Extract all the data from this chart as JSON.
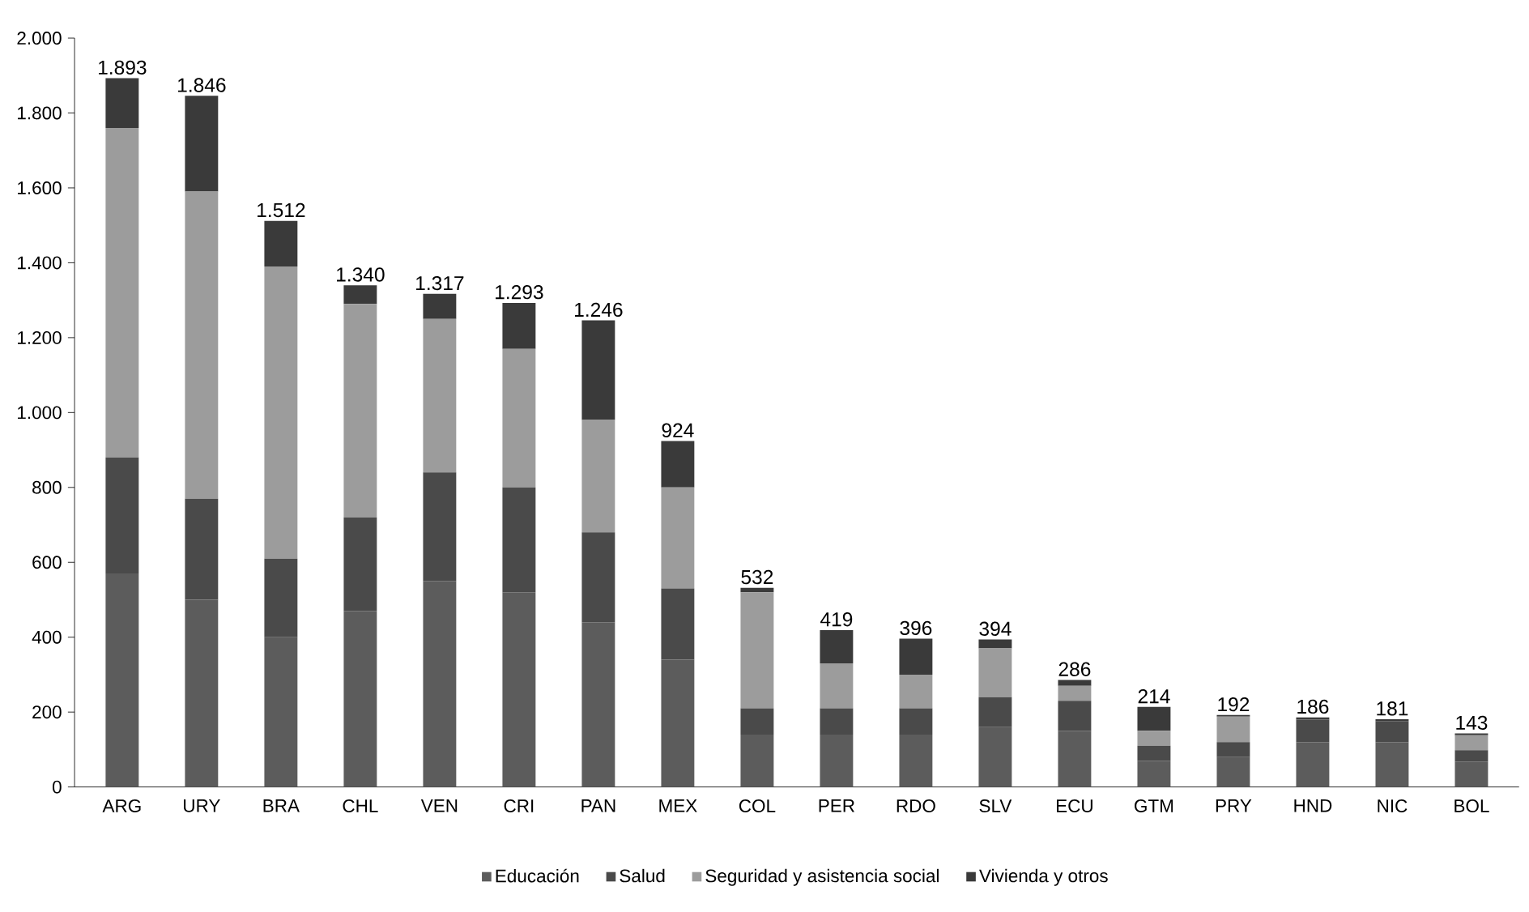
{
  "chart_data": {
    "type": "bar",
    "stacked": true,
    "categories": [
      "ARG",
      "URY",
      "BRA",
      "CHL",
      "VEN",
      "CRI",
      "PAN",
      "MEX",
      "COL",
      "PER",
      "RDO",
      "SLV",
      "ECU",
      "GTM",
      "PRY",
      "HND",
      "NIC",
      "BOL"
    ],
    "series": [
      {
        "name": "Educación",
        "color": "#5c5c5c",
        "values": [
          570,
          500,
          400,
          470,
          550,
          520,
          440,
          340,
          140,
          140,
          140,
          160,
          150,
          70,
          80,
          120,
          120,
          68
        ]
      },
      {
        "name": "Salud",
        "color": "#4a4a4a",
        "values": [
          310,
          270,
          210,
          250,
          290,
          280,
          240,
          190,
          70,
          70,
          70,
          80,
          80,
          40,
          40,
          60,
          56,
          30
        ]
      },
      {
        "name": "Seguridad y asistencia social",
        "color": "#9c9c9c",
        "values": [
          880,
          820,
          780,
          570,
          410,
          370,
          300,
          270,
          310,
          120,
          90,
          130,
          40,
          40,
          68,
          0,
          0,
          40
        ]
      },
      {
        "name": "Vivienda y otros",
        "color": "#3a3a3a",
        "values": [
          133,
          256,
          122,
          50,
          67,
          123,
          266,
          124,
          12,
          89,
          96,
          24,
          16,
          64,
          4,
          6,
          5,
          5
        ]
      }
    ],
    "totals": [
      "1.893",
      "1.846",
      "1.512",
      "1.340",
      "1.317",
      "1.293",
      "1.246",
      "924",
      "532",
      "419",
      "396",
      "394",
      "286",
      "214",
      "192",
      "186",
      "181",
      "143"
    ],
    "ylim": [
      0,
      2000
    ],
    "yticks": [
      0,
      200,
      400,
      600,
      800,
      {
        "value": 1000,
        "label": "1.000"
      },
      {
        "value": 1200,
        "label": "1.200"
      },
      {
        "value": 1400,
        "label": "1.400"
      },
      {
        "value": 1600,
        "label": "1.600"
      },
      {
        "value": 1800,
        "label": "1.800"
      },
      {
        "value": 2000,
        "label": "2.000"
      }
    ],
    "grid": false,
    "legend": "bottom"
  }
}
